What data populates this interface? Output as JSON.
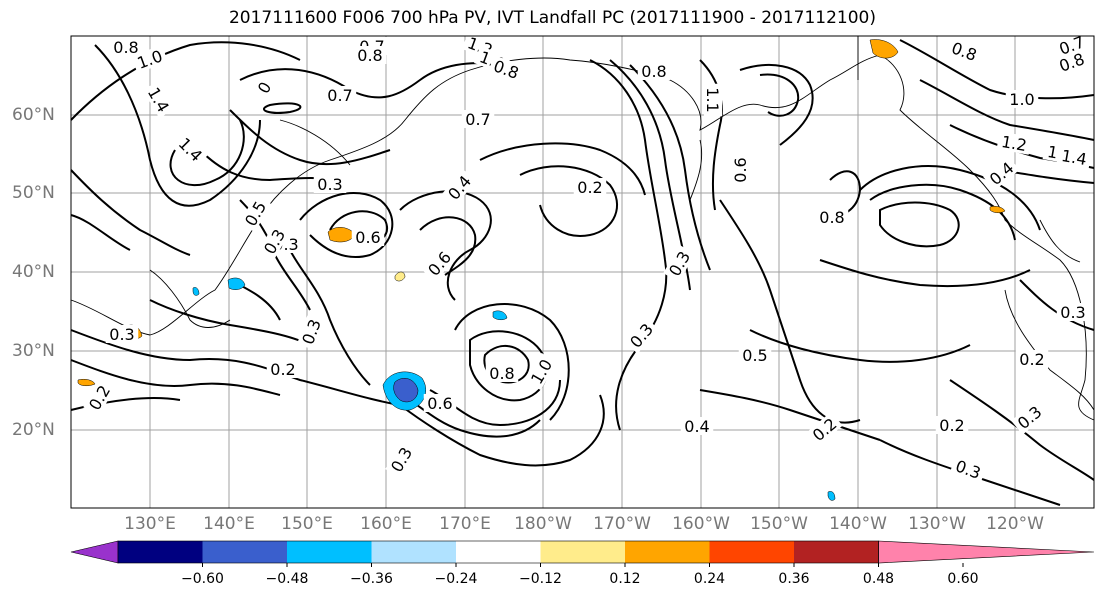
{
  "title": "2017111600 F006 700 hPa PV, IVT Landfall PC (2017111900 - 2017112100)",
  "lon_labels": [
    "130°E",
    "140°E",
    "150°E",
    "160°E",
    "170°E",
    "180°W",
    "170°W",
    "160°W",
    "150°W",
    "140°W",
    "130°W",
    "120°W"
  ],
  "lat_labels": [
    "60°N",
    "50°N",
    "40°N",
    "30°N",
    "20°N"
  ],
  "colorbar": {
    "tick_labels": [
      "−0.60",
      "−0.48",
      "−0.36",
      "−0.24",
      "−0.12",
      "0.12",
      "0.24",
      "0.36",
      "0.48",
      "0.60"
    ],
    "colors": [
      "#9932cc",
      "#000080",
      "#3a5fcd",
      "#00bfff",
      "#b0e2ff",
      "#ffffff",
      "#ffec8b",
      "#ffa500",
      "#ff4500",
      "#b22222",
      "#ff82ab"
    ]
  },
  "contour_labels": [
    "0.8",
    "1.0",
    "1.4",
    "1.4",
    "0.7",
    "0.8",
    "1.2",
    "1.0",
    "0.8",
    "0.8",
    "0.8",
    "0.7",
    "0.8",
    "1.0",
    "0",
    "0.7",
    "0.3",
    "0.7",
    "0.3",
    "1.1",
    "0.6",
    "0.4",
    "0.2",
    "1.4",
    "1.2",
    "1.4",
    "0.4",
    "0.8",
    "0.5",
    "0.3",
    "0.6",
    "0.6",
    "0.3",
    "0.3",
    "0.3",
    "0.8",
    "1.0",
    "0.5",
    "0.2",
    "0.3",
    "0.2",
    "0.6",
    "0.4",
    "0.2",
    "0.2",
    "0.3",
    "0.3",
    "0.3",
    "0.3",
    "0.2"
  ]
}
